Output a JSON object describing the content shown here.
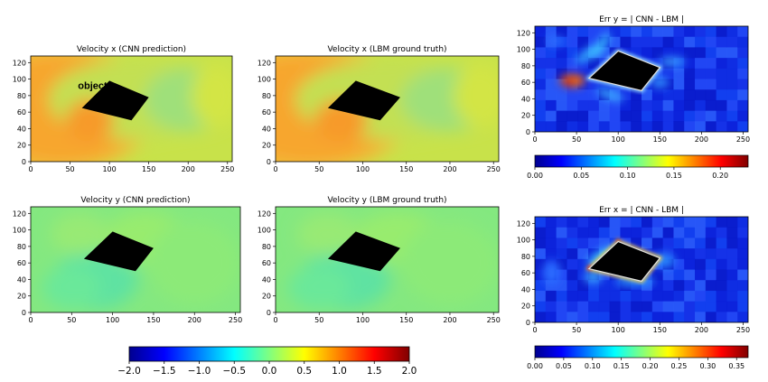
{
  "chart_data": [
    {
      "id": "vx-cnn",
      "type": "heatmap",
      "title": "Velocity x (CNN prediction)",
      "field": "vx",
      "style": "smooth",
      "xticks": [
        0,
        50,
        100,
        150,
        200,
        250
      ],
      "yticks": [
        0,
        20,
        40,
        60,
        80,
        100,
        120
      ],
      "xlim": [
        0,
        256
      ],
      "ylim": [
        0,
        128
      ],
      "object_polygon": [
        [
          65,
          65
        ],
        [
          100,
          98
        ],
        [
          150,
          78
        ],
        [
          128,
          50
        ]
      ],
      "annotation": "object"
    },
    {
      "id": "vx-lbm",
      "type": "heatmap",
      "title": "Velocity x (LBM ground truth)",
      "field": "vx",
      "style": "smooth",
      "xticks": [
        0,
        50,
        100,
        150,
        200,
        250
      ],
      "yticks": [
        0,
        20,
        40,
        60,
        80,
        100,
        120
      ],
      "xlim": [
        0,
        256
      ],
      "ylim": [
        0,
        128
      ],
      "object_polygon": [
        [
          60,
          65
        ],
        [
          92,
          98
        ],
        [
          143,
          78
        ],
        [
          120,
          50
        ]
      ]
    },
    {
      "id": "err-y",
      "type": "heatmap",
      "title": "Err y = | CNN - LBM |",
      "field": "erry",
      "style": "error",
      "xticks": [
        0,
        50,
        100,
        150,
        200,
        250
      ],
      "yticks": [
        0,
        20,
        40,
        60,
        80,
        100,
        120
      ],
      "xlim": [
        0,
        256
      ],
      "ylim": [
        0,
        128
      ],
      "object_polygon": [
        [
          65,
          65
        ],
        [
          100,
          98
        ],
        [
          150,
          78
        ],
        [
          128,
          50
        ]
      ],
      "colorbar": {
        "range": [
          0,
          0.23
        ],
        "ticks": [
          "0.00",
          "0.05",
          "0.10",
          "0.15",
          "0.20"
        ],
        "tick_values": [
          0,
          0.05,
          0.1,
          0.15,
          0.2
        ]
      }
    },
    {
      "id": "vy-cnn",
      "type": "heatmap",
      "title": "Velocity y (CNN prediction)",
      "field": "vy",
      "style": "smooth",
      "xticks": [
        0,
        50,
        100,
        150,
        200,
        250
      ],
      "yticks": [
        0,
        20,
        40,
        60,
        80,
        100,
        120
      ],
      "xlim": [
        0,
        256
      ],
      "ylim": [
        0,
        128
      ],
      "object_polygon": [
        [
          65,
          65
        ],
        [
          100,
          98
        ],
        [
          150,
          78
        ],
        [
          128,
          50
        ]
      ]
    },
    {
      "id": "vy-lbm",
      "type": "heatmap",
      "title": "Velocity y (LBM ground truth)",
      "field": "vy",
      "style": "smooth",
      "xticks": [
        0,
        50,
        100,
        150,
        200,
        250
      ],
      "yticks": [
        0,
        20,
        40,
        60,
        80,
        100,
        120
      ],
      "xlim": [
        0,
        256
      ],
      "ylim": [
        0,
        128
      ],
      "object_polygon": [
        [
          60,
          65
        ],
        [
          92,
          98
        ],
        [
          143,
          78
        ],
        [
          120,
          50
        ]
      ]
    },
    {
      "id": "err-x",
      "type": "heatmap",
      "title": "Err x = | CNN - LBM |",
      "field": "errx",
      "style": "error",
      "xticks": [
        0,
        50,
        100,
        150,
        200,
        250
      ],
      "yticks": [
        0,
        20,
        40,
        60,
        80,
        100,
        120
      ],
      "xlim": [
        0,
        256
      ],
      "ylim": [
        0,
        128
      ],
      "object_polygon": [
        [
          65,
          65
        ],
        [
          100,
          98
        ],
        [
          150,
          78
        ],
        [
          128,
          50
        ]
      ],
      "colorbar": {
        "range": [
          0,
          0.37
        ],
        "ticks": [
          "0.00",
          "0.05",
          "0.10",
          "0.15",
          "0.20",
          "0.25",
          "0.30",
          "0.35"
        ],
        "tick_values": [
          0,
          0.05,
          0.1,
          0.15,
          0.2,
          0.25,
          0.3,
          0.35
        ]
      }
    }
  ],
  "shared_colorbar": {
    "range": [
      -2.0,
      2.0
    ],
    "ticks": [
      "−2.0",
      "−1.5",
      "−1.0",
      "−0.5",
      "0.0",
      "0.5",
      "1.0",
      "1.5",
      "2.0"
    ],
    "tick_values": [
      -2.0,
      -1.5,
      -1.0,
      -0.5,
      0.0,
      0.5,
      1.0,
      1.5,
      2.0
    ]
  },
  "colors": {
    "object": "#000000",
    "colormap": "jet"
  }
}
